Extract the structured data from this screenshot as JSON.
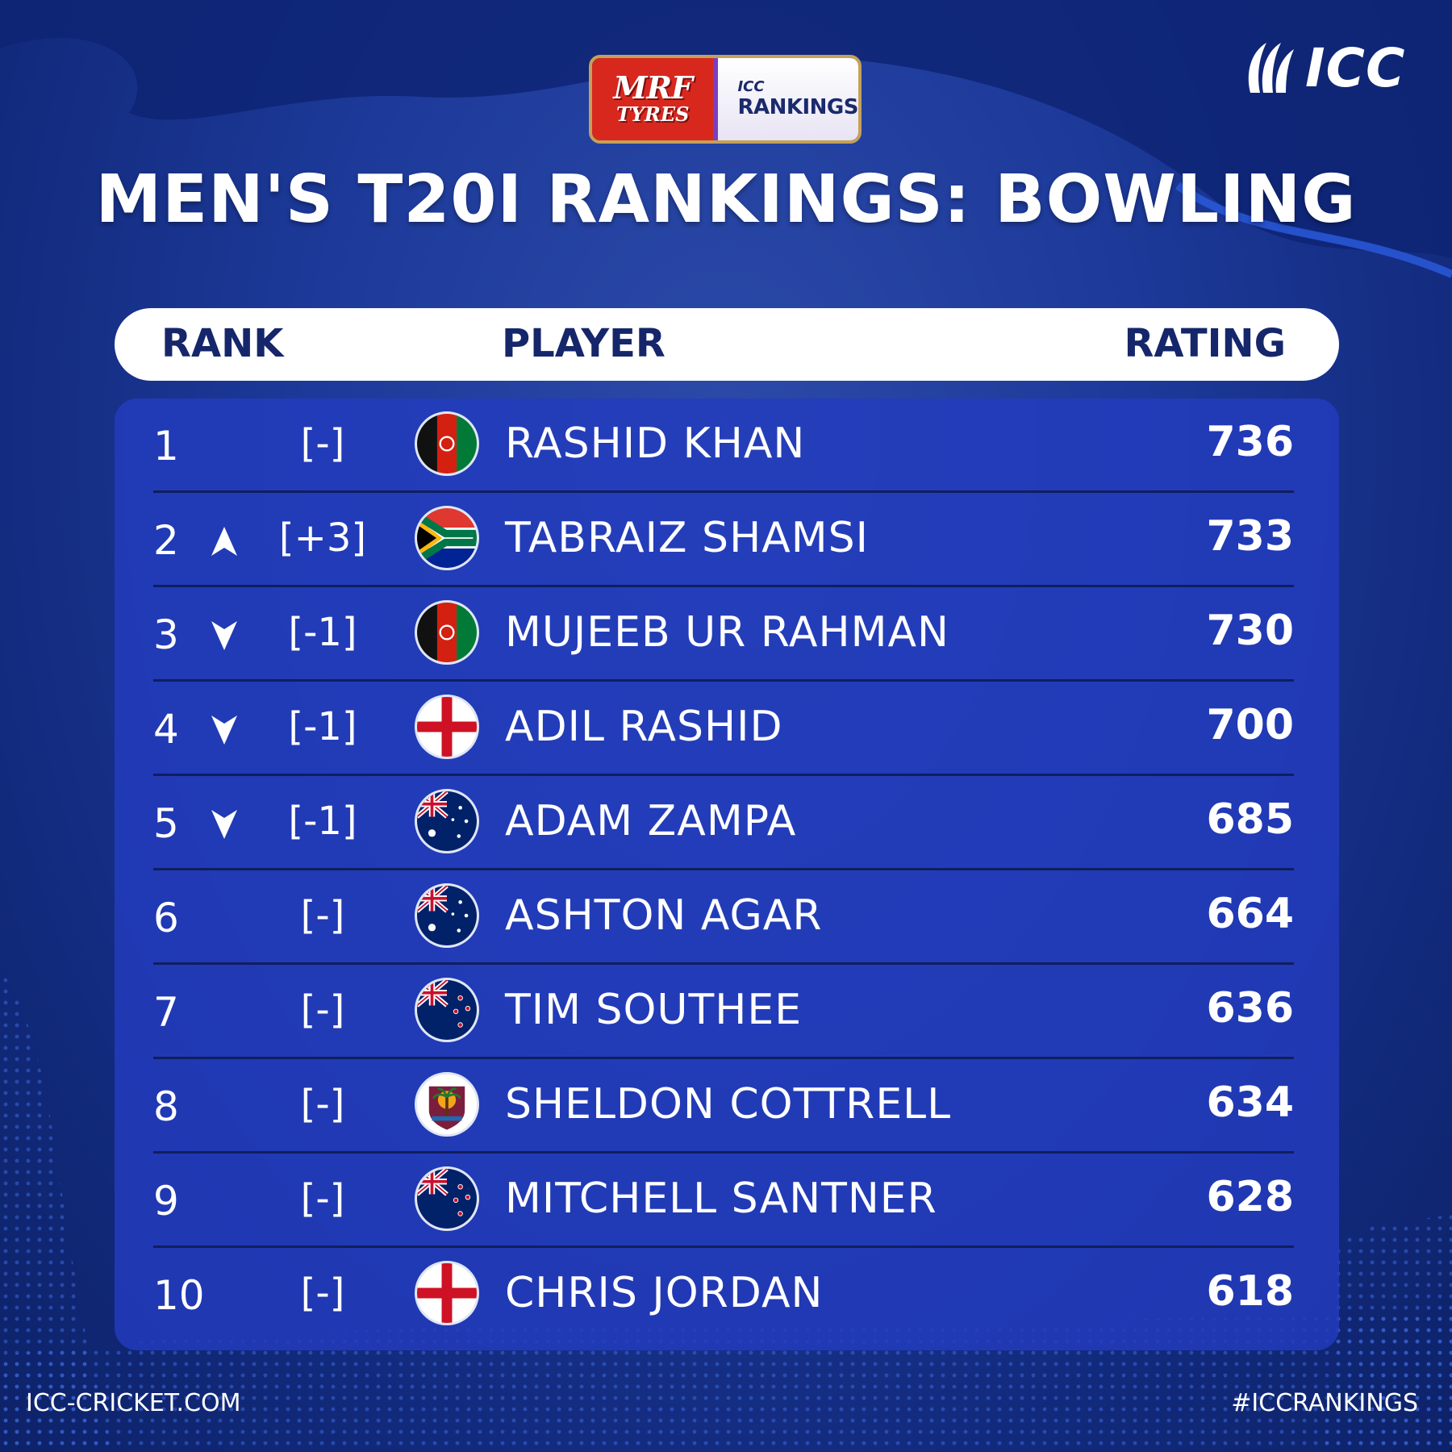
{
  "sponsor": {
    "mrf": "MRF",
    "tyres": "TYRES",
    "icc_small": "ICC",
    "rankings": "RANKINGS"
  },
  "brand": {
    "icc_logo_text": "ICC"
  },
  "title": "MEN'S T20I RANKINGS: BOWLING",
  "columns": {
    "rank": "RANK",
    "player": "PLAYER",
    "rating": "RATING"
  },
  "rows": [
    {
      "rank": "1",
      "movement": "none",
      "change": "[-]",
      "flag": "afghanistan-flag-icon",
      "player": "RASHID KHAN",
      "rating": "736"
    },
    {
      "rank": "2",
      "movement": "up",
      "change": "[+3]",
      "flag": "south-africa-flag-icon",
      "player": "TABRAIZ SHAMSI",
      "rating": "733"
    },
    {
      "rank": "3",
      "movement": "down",
      "change": "[-1]",
      "flag": "afghanistan-flag-icon",
      "player": "MUJEEB UR RAHMAN",
      "rating": "730"
    },
    {
      "rank": "4",
      "movement": "down",
      "change": "[-1]",
      "flag": "england-flag-icon",
      "player": "ADIL RASHID",
      "rating": "700"
    },
    {
      "rank": "5",
      "movement": "down",
      "change": "[-1]",
      "flag": "australia-flag-icon",
      "player": "ADAM ZAMPA",
      "rating": "685"
    },
    {
      "rank": "6",
      "movement": "none",
      "change": "[-]",
      "flag": "australia-flag-icon",
      "player": "ASHTON AGAR",
      "rating": "664"
    },
    {
      "rank": "7",
      "movement": "none",
      "change": "[-]",
      "flag": "new-zealand-flag-icon",
      "player": "TIM SOUTHEE",
      "rating": "636"
    },
    {
      "rank": "8",
      "movement": "none",
      "change": "[-]",
      "flag": "west-indies-flag-icon",
      "player": "SHELDON COTTRELL",
      "rating": "634"
    },
    {
      "rank": "9",
      "movement": "none",
      "change": "[-]",
      "flag": "new-zealand-flag-icon",
      "player": "MITCHELL SANTNER",
      "rating": "628"
    },
    {
      "rank": "10",
      "movement": "none",
      "change": "[-]",
      "flag": "england-flag-icon",
      "player": "CHRIS JORDAN",
      "rating": "618"
    }
  ],
  "footer": {
    "website": "ICC-CRICKET.COM",
    "hashtag": "#ICCRANKINGS"
  },
  "colors": {
    "background": "#1d3a9a",
    "panel": "#233cbe",
    "header_text": "#15266a",
    "divider": "#0f1f5e"
  }
}
